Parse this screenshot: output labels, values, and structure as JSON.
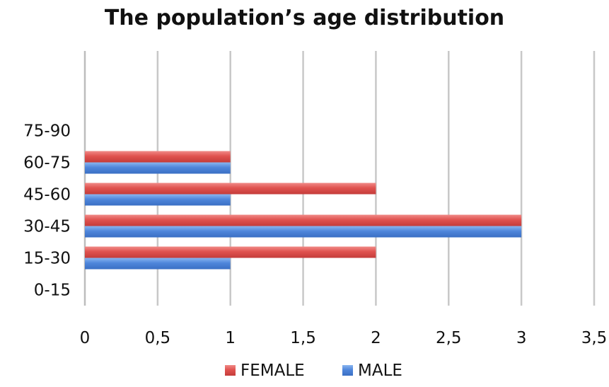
{
  "chart_data": {
    "type": "bar",
    "orientation": "horizontal",
    "title": "The population’s age distribution",
    "xlabel": "",
    "ylabel": "",
    "categories": [
      "0-15",
      "15-30",
      "30-45",
      "45-60",
      "60-75",
      "75-90"
    ],
    "series": [
      {
        "name": "FEMALE",
        "color": "#e0524f",
        "values": [
          0,
          2,
          3,
          2,
          1,
          0
        ]
      },
      {
        "name": "MALE",
        "color": "#4f86db",
        "values": [
          0,
          1,
          3,
          1,
          1,
          0
        ]
      }
    ],
    "xlim": [
      0,
      3.5
    ],
    "xticks": [
      0,
      0.5,
      1,
      1.5,
      2,
      2.5,
      3,
      3.5
    ],
    "xtick_labels": [
      "0",
      "0,5",
      "1",
      "1,5",
      "2",
      "2,5",
      "3",
      "3,5"
    ],
    "grid": "vertical",
    "legend_position": "bottom"
  }
}
